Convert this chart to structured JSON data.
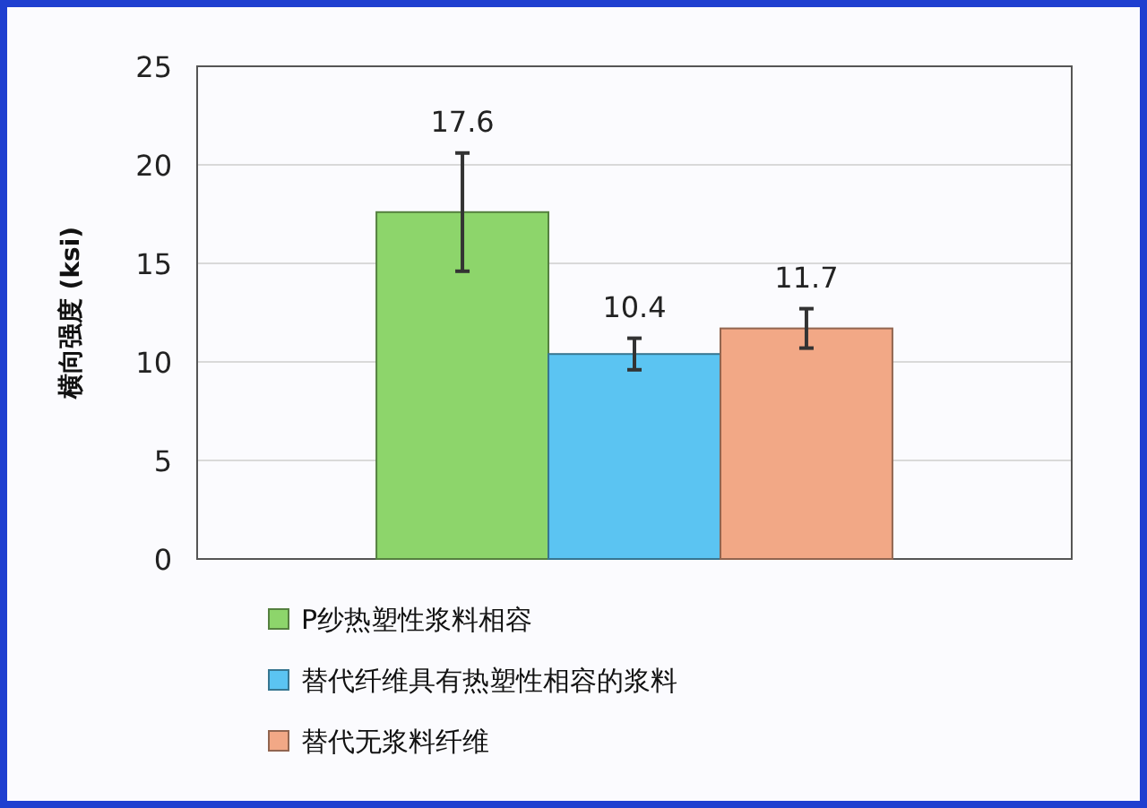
{
  "chart_data": {
    "type": "bar",
    "ylabel": "横向强度 (ksi)",
    "categories": [
      null
    ],
    "series": [
      {
        "name": "P纱热塑性浆料相容",
        "color": "#8dd56b",
        "values": [
          17.6
        ],
        "errors": [
          [
            14.6,
            20.6
          ]
        ]
      },
      {
        "name": "替代纤维具有热塑性相容的浆料",
        "color": "#5bc4f2",
        "values": [
          10.4
        ],
        "errors": [
          [
            9.6,
            11.2
          ]
        ]
      },
      {
        "name": "替代无浆料纤维",
        "color": "#f2a886",
        "values": [
          11.7
        ],
        "errors": [
          [
            10.7,
            12.7
          ]
        ]
      }
    ],
    "ylim": [
      0,
      25
    ],
    "yticks": [
      0,
      5,
      10,
      15,
      20,
      25
    ],
    "grid": "y",
    "legend": "bottom",
    "data_labels": true
  }
}
